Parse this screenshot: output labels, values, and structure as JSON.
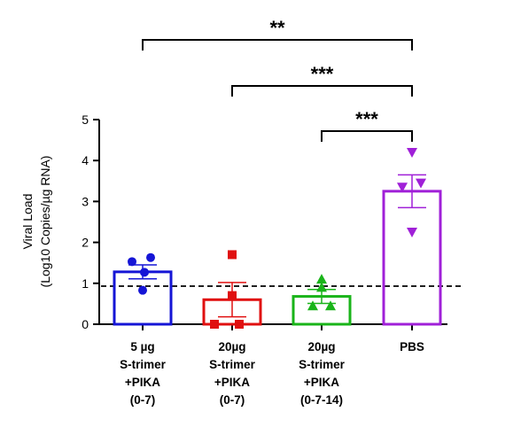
{
  "chart_data": {
    "type": "bar",
    "ylabel": [
      "Viral Load",
      "(Log10 Copies/µg RNA)"
    ],
    "ylim": [
      0,
      5
    ],
    "yticks": [
      "0",
      "1",
      "2",
      "3",
      "4",
      "5"
    ],
    "grid": false,
    "threshold": 0.93,
    "categories": [
      {
        "label_lines": [
          "5 µg",
          "S-trimer",
          "+PIKA",
          "(0-7)"
        ],
        "color": "#1515d6",
        "marker": "circle",
        "mean": 1.28,
        "sem": 0.17,
        "points": [
          1.53,
          1.63,
          1.27,
          0.83
        ]
      },
      {
        "label_lines": [
          "20µg",
          "S-trimer",
          "+PIKA",
          "(0-7)"
        ],
        "color": "#e01010",
        "marker": "square",
        "mean": 0.6,
        "sem": 0.42,
        "points": [
          1.7,
          0.7,
          0.0,
          0.0
        ]
      },
      {
        "label_lines": [
          "20µg",
          "S-trimer",
          "+PIKA",
          "(0-7-14)"
        ],
        "color": "#1ab41a",
        "marker": "triangle-up",
        "mean": 0.68,
        "sem": 0.17,
        "points": [
          1.1,
          0.9,
          0.45,
          0.45
        ]
      },
      {
        "label_lines": [
          "PBS"
        ],
        "color": "#a020d8",
        "marker": "triangle-down",
        "mean": 3.25,
        "sem": 0.4,
        "points": [
          4.2,
          3.45,
          3.35,
          2.25
        ]
      }
    ],
    "significance": [
      {
        "from": 0,
        "to": 3,
        "label": "**"
      },
      {
        "from": 1,
        "to": 3,
        "label": "***"
      },
      {
        "from": 2,
        "to": 3,
        "label": "***"
      }
    ]
  }
}
